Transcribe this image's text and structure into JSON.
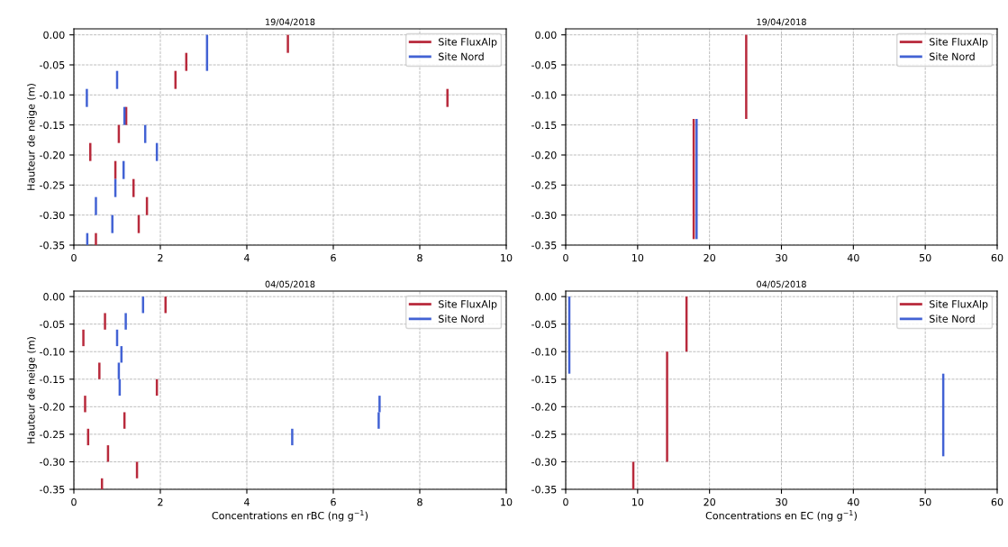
{
  "chart_data": [
    {
      "type": "bar",
      "title": "19/04/2018",
      "ylabel": "Hauteur de neige (m)",
      "xlim": [
        0,
        10
      ],
      "xticks": [
        0,
        2,
        4,
        6,
        8,
        10
      ],
      "ylim": [
        -0.35,
        0.01
      ],
      "yticks": [
        {
          "value": 0,
          "label": "0.00"
        },
        {
          "value": -0.05,
          "label": "-0.05"
        },
        {
          "value": -0.1,
          "label": "-0.10"
        },
        {
          "value": -0.15,
          "label": "-0.15"
        },
        {
          "value": -0.2,
          "label": "-0.20"
        },
        {
          "value": -0.25,
          "label": "-0.25"
        },
        {
          "value": -0.3,
          "label": "-0.30"
        },
        {
          "value": -0.35,
          "label": "-0.35"
        }
      ],
      "grid": true,
      "legend": "top right",
      "series": [
        {
          "name": "Site FluxAlp",
          "color": "#b82a3c",
          "x": [
            0.38,
            0.51,
            0.96,
            1.04,
            1.21,
            1.38,
            1.5,
            1.69,
            2.35,
            2.6,
            4.95,
            8.64
          ],
          "base": [
            -0.18,
            -0.33,
            -0.21,
            -0.15,
            -0.12,
            -0.24,
            -0.3,
            -0.27,
            -0.06,
            -0.03,
            0,
            -0.09
          ],
          "values": [
            -0.03,
            -0.02,
            -0.03,
            -0.03,
            -0.03,
            -0.03,
            -0.03,
            -0.03,
            -0.03,
            -0.03,
            -0.03,
            -0.03
          ]
        },
        {
          "name": "Site Nord",
          "color": "#4262d4",
          "x": [
            0.3,
            0.31,
            0.51,
            0.89,
            0.96,
            1.0,
            1.15,
            1.17,
            1.65,
            1.92,
            3.08
          ],
          "base": [
            -0.09,
            -0.33,
            -0.27,
            -0.3,
            -0.24,
            -0.06,
            -0.21,
            -0.12,
            -0.15,
            -0.18,
            0
          ],
          "values": [
            -0.03,
            -0.02,
            -0.03,
            -0.03,
            -0.03,
            -0.03,
            -0.03,
            -0.03,
            -0.03,
            -0.03,
            -0.06
          ]
        }
      ]
    },
    {
      "type": "bar",
      "title": "19/04/2018",
      "xlim": [
        0,
        60
      ],
      "xticks": [
        0,
        10,
        20,
        30,
        40,
        50,
        60
      ],
      "ylim": [
        -0.35,
        0.01
      ],
      "yticks": [
        {
          "value": 0,
          "label": "0.00"
        },
        {
          "value": -0.05,
          "label": "-0.05"
        },
        {
          "value": -0.1,
          "label": "-0.10"
        },
        {
          "value": -0.15,
          "label": "-0.15"
        },
        {
          "value": -0.2,
          "label": "-0.20"
        },
        {
          "value": -0.25,
          "label": "-0.25"
        },
        {
          "value": -0.3,
          "label": "-0.30"
        },
        {
          "value": -0.35,
          "label": "-0.35"
        }
      ],
      "grid": true,
      "legend": "top right",
      "series": [
        {
          "name": "Site FluxAlp",
          "color": "#b82a3c",
          "x": [
            17.8,
            25.1
          ],
          "base": [
            -0.14,
            0
          ],
          "values": [
            -0.2,
            -0.14
          ]
        },
        {
          "name": "Site Nord",
          "color": "#4262d4",
          "x": [
            18.2
          ],
          "base": [
            -0.14
          ],
          "values": [
            -0.2
          ]
        }
      ]
    },
    {
      "type": "bar",
      "title": "04/05/2018",
      "xlabel": "Concentrations en rBC (ng g$^{−1}$)",
      "ylabel": "Hauteur de neige (m)",
      "xlim": [
        0,
        10
      ],
      "xticks": [
        0,
        2,
        4,
        6,
        8,
        10
      ],
      "ylim": [
        -0.35,
        0.01
      ],
      "yticks": [
        {
          "value": 0,
          "label": "0.00"
        },
        {
          "value": -0.05,
          "label": "-0.05"
        },
        {
          "value": -0.1,
          "label": "-0.10"
        },
        {
          "value": -0.15,
          "label": "-0.15"
        },
        {
          "value": -0.2,
          "label": "-0.20"
        },
        {
          "value": -0.25,
          "label": "-0.25"
        },
        {
          "value": -0.3,
          "label": "-0.30"
        },
        {
          "value": -0.35,
          "label": "-0.35"
        }
      ],
      "grid": true,
      "legend": "top right",
      "series": [
        {
          "name": "Site FluxAlp",
          "color": "#b82a3c",
          "x": [
            0.22,
            0.26,
            0.33,
            0.59,
            0.65,
            0.72,
            0.79,
            1.17,
            1.46,
            1.92,
            2.12
          ],
          "base": [
            -0.06,
            -0.18,
            -0.24,
            -0.12,
            -0.33,
            -0.03,
            -0.27,
            -0.21,
            -0.3,
            -0.15,
            0
          ],
          "values": [
            -0.03,
            -0.03,
            -0.03,
            -0.03,
            -0.02,
            -0.03,
            -0.03,
            -0.03,
            -0.03,
            -0.03,
            -0.03
          ]
        },
        {
          "name": "Site Nord",
          "color": "#4262d4",
          "x": [
            1.0,
            1.04,
            1.06,
            1.1,
            1.2,
            1.6,
            5.05,
            7.05,
            7.07
          ],
          "base": [
            -0.06,
            -0.12,
            -0.15,
            -0.09,
            -0.03,
            0,
            -0.24,
            -0.21,
            -0.18
          ],
          "values": [
            -0.03,
            -0.03,
            -0.03,
            -0.03,
            -0.03,
            -0.03,
            -0.03,
            -0.03,
            -0.03
          ]
        }
      ]
    },
    {
      "type": "bar",
      "title": "04/05/2018",
      "xlabel": "Concentrations en EC (ng g$^{−1}$)",
      "xlim": [
        0,
        60
      ],
      "xticks": [
        0,
        10,
        20,
        30,
        40,
        50,
        60
      ],
      "ylim": [
        -0.35,
        0.01
      ],
      "yticks": [
        {
          "value": 0,
          "label": "0.00"
        },
        {
          "value": -0.05,
          "label": "-0.05"
        },
        {
          "value": -0.1,
          "label": "-0.10"
        },
        {
          "value": -0.15,
          "label": "-0.15"
        },
        {
          "value": -0.2,
          "label": "-0.20"
        },
        {
          "value": -0.25,
          "label": "-0.25"
        },
        {
          "value": -0.3,
          "label": "-0.30"
        },
        {
          "value": -0.35,
          "label": "-0.35"
        }
      ],
      "grid": true,
      "legend": "top right",
      "series": [
        {
          "name": "Site FluxAlp",
          "color": "#b82a3c",
          "x": [
            9.4,
            14.1,
            16.8
          ],
          "base": [
            -0.3,
            -0.1,
            0
          ],
          "values": [
            -0.05,
            -0.2,
            -0.1
          ]
        },
        {
          "name": "Site Nord",
          "color": "#4262d4",
          "x": [
            0.5,
            52.5
          ],
          "base": [
            0,
            -0.14
          ],
          "values": [
            -0.14,
            -0.15
          ]
        }
      ]
    }
  ]
}
